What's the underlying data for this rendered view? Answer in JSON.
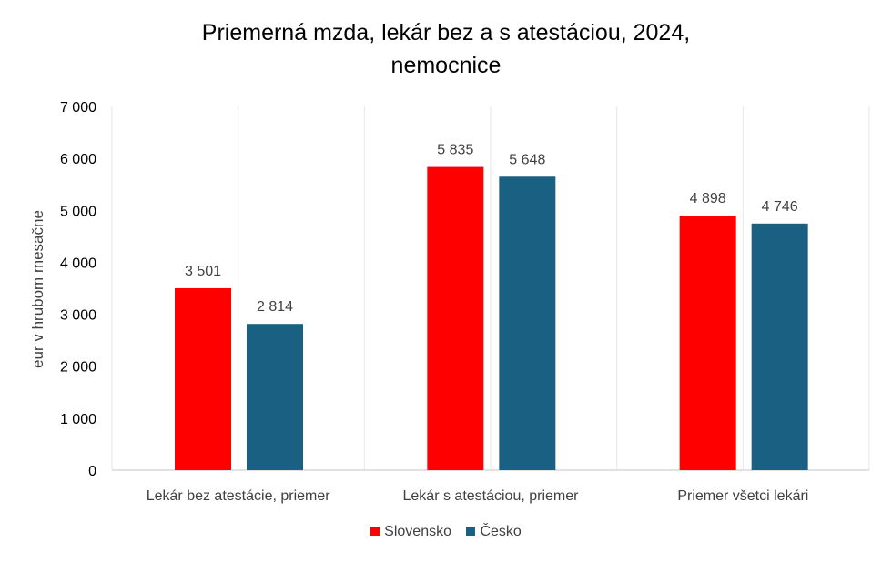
{
  "chart_data": {
    "type": "bar",
    "title_line1": "Priemerná mzda, lekár bez a s atestáciou, 2024,",
    "title_line2": "nemocnice",
    "xlabel": "",
    "ylabel": "eur v hrubom mesačne",
    "ylim": [
      0,
      7000
    ],
    "yticks": [
      "0",
      "1 000",
      "2 000",
      "3 000",
      "4 000",
      "5 000",
      "6 000",
      "7 000"
    ],
    "categories": [
      "Lekár bez atestácie, priemer",
      "Lekár s atestáciou, priemer",
      "Priemer všetci lekári"
    ],
    "series": [
      {
        "name": "Slovensko",
        "color": "#FF0000",
        "values": [
          3501,
          5835,
          4898
        ],
        "labels": [
          "3 501",
          "5 835",
          "4 898"
        ]
      },
      {
        "name": "Česko",
        "color": "#1A6082",
        "values": [
          2814,
          5648,
          4746
        ],
        "labels": [
          "2 814",
          "5 648",
          "4 746"
        ]
      }
    ],
    "grid": "vertical category separators",
    "legend": "bottom"
  }
}
